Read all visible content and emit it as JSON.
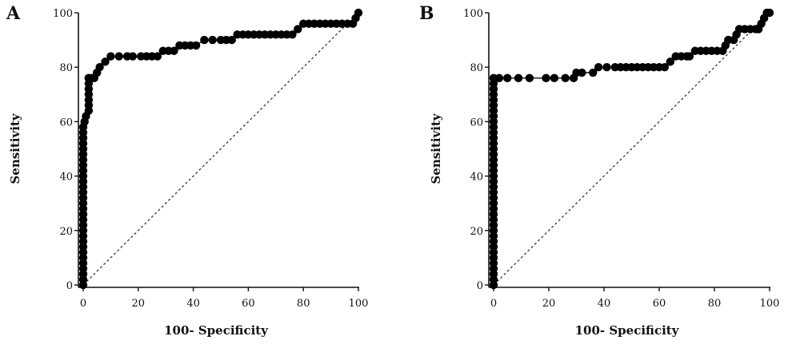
{
  "chart_data": [
    {
      "type": "line",
      "panel_label": "A",
      "xlabel": "100- Specificity",
      "ylabel": "Sensitivity",
      "xlim": [
        0,
        100
      ],
      "ylim": [
        0,
        100
      ],
      "x_ticks": [
        0,
        20,
        40,
        60,
        80,
        100
      ],
      "y_ticks": [
        0,
        20,
        40,
        60,
        80,
        100
      ],
      "grid": false,
      "reference_line": [
        [
          0,
          0
        ],
        [
          100,
          100
        ]
      ],
      "series": [
        {
          "x": [
            0,
            0,
            0,
            0,
            0,
            0,
            0,
            0,
            0,
            0,
            0,
            0,
            0,
            0,
            0,
            0,
            0,
            0,
            0,
            0,
            0,
            0,
            0,
            0,
            0,
            0,
            0,
            0,
            0,
            0,
            0.5,
            1,
            2,
            2,
            2,
            2,
            2,
            2,
            2,
            2,
            3,
            4,
            5,
            6,
            8,
            10,
            13,
            16,
            18,
            21,
            23,
            25,
            27,
            29,
            31,
            33,
            35,
            37,
            39,
            41,
            44,
            47,
            50,
            52,
            54,
            56,
            58,
            60,
            62,
            64,
            66,
            68,
            70,
            72,
            74,
            76,
            78,
            80,
            82,
            84,
            86,
            88,
            90,
            92,
            94,
            96,
            98,
            99,
            100
          ],
          "y": [
            0,
            2,
            4,
            6,
            8,
            10,
            12,
            14,
            16,
            18,
            20,
            22,
            24,
            26,
            28,
            30,
            32,
            34,
            36,
            38,
            40,
            42,
            44,
            46,
            48,
            50,
            52,
            54,
            56,
            58,
            60,
            62,
            64,
            66,
            68,
            70,
            72,
            74,
            76,
            76,
            76,
            76,
            78,
            80,
            82,
            84,
            84,
            84,
            84,
            84,
            84,
            84,
            84,
            86,
            86,
            86,
            88,
            88,
            88,
            88,
            90,
            90,
            90,
            90,
            90,
            92,
            92,
            92,
            92,
            92,
            92,
            92,
            92,
            92,
            92,
            92,
            94,
            96,
            96,
            96,
            96,
            96,
            96,
            96,
            96,
            96,
            96,
            98,
            100
          ]
        }
      ]
    },
    {
      "type": "line",
      "panel_label": "B",
      "xlabel": "100- Specificity",
      "ylabel": "Sensitivity",
      "xlim": [
        0,
        100
      ],
      "ylim": [
        0,
        100
      ],
      "x_ticks": [
        0,
        20,
        40,
        60,
        80,
        100
      ],
      "y_ticks": [
        0,
        20,
        40,
        60,
        80,
        100
      ],
      "grid": false,
      "reference_line": [
        [
          0,
          0
        ],
        [
          100,
          100
        ]
      ],
      "series": [
        {
          "x": [
            0,
            0,
            0,
            0,
            0,
            0,
            0,
            0,
            0,
            0,
            0,
            0,
            0,
            0,
            0,
            0,
            0,
            0,
            0,
            0,
            0,
            0,
            0,
            0,
            0,
            0,
            0,
            0,
            0,
            0,
            0,
            0,
            0,
            0,
            0,
            0,
            0,
            0,
            0,
            2,
            5,
            9,
            13,
            19,
            22,
            26,
            29,
            30,
            32,
            36,
            38,
            41,
            44,
            46,
            48,
            50,
            52,
            54,
            56,
            58,
            60,
            62,
            64,
            66,
            68,
            70,
            71,
            73,
            75,
            77,
            79,
            81,
            83,
            84,
            85,
            87,
            88,
            89,
            91,
            93,
            95,
            96,
            97,
            98,
            99,
            100
          ],
          "y": [
            0,
            2,
            4,
            6,
            8,
            10,
            12,
            14,
            16,
            18,
            20,
            22,
            24,
            26,
            28,
            30,
            32,
            34,
            36,
            38,
            40,
            42,
            44,
            46,
            48,
            50,
            52,
            54,
            56,
            58,
            60,
            62,
            64,
            66,
            68,
            70,
            72,
            74,
            76,
            76,
            76,
            76,
            76,
            76,
            76,
            76,
            76,
            78,
            78,
            78,
            80,
            80,
            80,
            80,
            80,
            80,
            80,
            80,
            80,
            80,
            80,
            80,
            82,
            84,
            84,
            84,
            84,
            86,
            86,
            86,
            86,
            86,
            86,
            88,
            90,
            90,
            92,
            94,
            94,
            94,
            94,
            94,
            96,
            98,
            100,
            100
          ]
        }
      ]
    }
  ]
}
